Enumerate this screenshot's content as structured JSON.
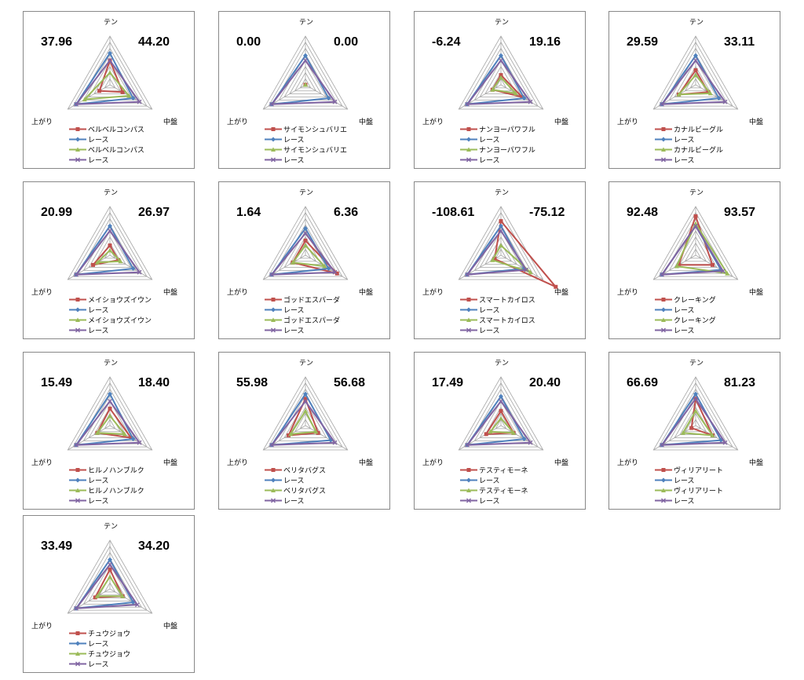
{
  "axes": [
    "テン",
    "中盤",
    "上がり"
  ],
  "series_style": [
    {
      "color": "#c0504d",
      "marker": "square"
    },
    {
      "color": "#4f81bd",
      "marker": "diamond"
    },
    {
      "color": "#9bbb59",
      "marker": "triangle"
    },
    {
      "color": "#8064a2",
      "marker": "x"
    }
  ],
  "chart_data": [
    {
      "type": "radar",
      "left_value": "37.96",
      "right_value": "44.20",
      "categories": [
        "テン",
        "中盤",
        "上がり"
      ],
      "series": [
        {
          "name": "ベルベルコンパス",
          "values": [
            0.5,
            0.3,
            0.25
          ]
        },
        {
          "name": "レース",
          "values": [
            0.65,
            0.55,
            0.8
          ]
        },
        {
          "name": "ベルベルコンパス",
          "values": [
            0.25,
            0.45,
            0.6
          ]
        },
        {
          "name": "レース",
          "values": [
            0.5,
            0.7,
            0.8
          ]
        }
      ]
    },
    {
      "type": "radar",
      "left_value": "0.00",
      "right_value": "0.00",
      "categories": [
        "テン",
        "中盤",
        "上がり"
      ],
      "series": [
        {
          "name": "サイモンシュバリエ",
          "values": [
            0,
            0,
            0
          ]
        },
        {
          "name": "レース",
          "values": [
            0.6,
            0.55,
            0.8
          ]
        },
        {
          "name": "サイモンシュバリエ",
          "values": [
            0,
            0,
            0
          ]
        },
        {
          "name": "レース",
          "values": [
            0.5,
            0.7,
            0.8
          ]
        }
      ]
    },
    {
      "type": "radar",
      "left_value": "-6.24",
      "right_value": "19.16",
      "categories": [
        "テン",
        "中盤",
        "上がり"
      ],
      "series": [
        {
          "name": "ナンヨーパワフル",
          "values": [
            0.2,
            0.5,
            0.2
          ]
        },
        {
          "name": "レース",
          "values": [
            0.6,
            0.55,
            0.8
          ]
        },
        {
          "name": "ナンヨーパワフル",
          "values": [
            0.15,
            0.35,
            0.2
          ]
        },
        {
          "name": "レース",
          "values": [
            0.5,
            0.7,
            0.8
          ]
        }
      ]
    },
    {
      "type": "radar",
      "left_value": "29.59",
      "right_value": "33.11",
      "categories": [
        "テン",
        "中盤",
        "上がり"
      ],
      "series": [
        {
          "name": "カナルビーグル",
          "values": [
            0.3,
            0.3,
            0.4
          ]
        },
        {
          "name": "レース",
          "values": [
            0.6,
            0.55,
            0.8
          ]
        },
        {
          "name": "カナルビーグル",
          "values": [
            0.2,
            0.35,
            0.4
          ]
        },
        {
          "name": "レース",
          "values": [
            0.5,
            0.7,
            0.8
          ]
        }
      ]
    },
    {
      "type": "radar",
      "left_value": "20.99",
      "right_value": "26.97",
      "categories": [
        "テン",
        "中盤",
        "上がり"
      ],
      "series": [
        {
          "name": "メイショウズイウン",
          "values": [
            0.2,
            0.2,
            0.4
          ]
        },
        {
          "name": "レース",
          "values": [
            0.6,
            0.55,
            0.8
          ]
        },
        {
          "name": "メイショウズイウン",
          "values": [
            0.1,
            0.25,
            0.3
          ]
        },
        {
          "name": "レース",
          "values": [
            0.5,
            0.7,
            0.8
          ]
        }
      ]
    },
    {
      "type": "radar",
      "left_value": "1.64",
      "right_value": "6.36",
      "categories": [
        "テン",
        "中盤",
        "上がり"
      ],
      "series": [
        {
          "name": "ゴッドエスパーダ",
          "values": [
            0.3,
            0.75,
            0.3
          ]
        },
        {
          "name": "レース",
          "values": [
            0.55,
            0.55,
            0.8
          ]
        },
        {
          "name": "ゴッドエスパーダ",
          "values": [
            0.2,
            0.45,
            0.3
          ]
        },
        {
          "name": "レース",
          "values": [
            0.45,
            0.7,
            0.8
          ]
        }
      ]
    },
    {
      "type": "radar",
      "left_value": "-108.61",
      "right_value": "-75.12",
      "categories": [
        "テン",
        "中盤",
        "上がり"
      ],
      "series": [
        {
          "name": "スマートカイロス",
          "values": [
            0.7,
            1.3,
            0.15
          ]
        },
        {
          "name": "レース",
          "values": [
            0.6,
            0.55,
            0.8
          ]
        },
        {
          "name": "スマートカイロス",
          "values": [
            0.2,
            0.7,
            0.2
          ]
        },
        {
          "name": "レース",
          "values": [
            0.5,
            0.6,
            0.8
          ]
        }
      ]
    },
    {
      "type": "radar",
      "left_value": "92.48",
      "right_value": "93.57",
      "categories": [
        "テン",
        "中盤",
        "上がり"
      ],
      "series": [
        {
          "name": "クレーキング",
          "values": [
            0.8,
            0.4,
            0.4
          ]
        },
        {
          "name": "レース",
          "values": [
            0.6,
            0.6,
            0.8
          ]
        },
        {
          "name": "クレーキング",
          "values": [
            0.65,
            0.75,
            0.45
          ]
        },
        {
          "name": "レース",
          "values": [
            0.6,
            0.65,
            0.8
          ]
        }
      ]
    },
    {
      "type": "radar",
      "left_value": "15.49",
      "right_value": "18.40",
      "categories": [
        "テン",
        "中盤",
        "上がり"
      ],
      "series": [
        {
          "name": "ヒルノハンブルク",
          "values": [
            0.35,
            0.5,
            0.3
          ]
        },
        {
          "name": "レース",
          "values": [
            0.65,
            0.55,
            0.8
          ]
        },
        {
          "name": "ヒルノハンブルク",
          "values": [
            0.2,
            0.35,
            0.3
          ]
        },
        {
          "name": "レース",
          "values": [
            0.5,
            0.7,
            0.8
          ]
        }
      ]
    },
    {
      "type": "radar",
      "left_value": "55.98",
      "right_value": "56.68",
      "categories": [
        "テン",
        "中盤",
        "上がり"
      ],
      "series": [
        {
          "name": "ベリタバグス",
          "values": [
            0.55,
            0.3,
            0.4
          ]
        },
        {
          "name": "レース",
          "values": [
            0.65,
            0.6,
            0.8
          ]
        },
        {
          "name": "ベリタバグス",
          "values": [
            0.3,
            0.25,
            0.35
          ]
        },
        {
          "name": "レース",
          "values": [
            0.5,
            0.7,
            0.8
          ]
        }
      ]
    },
    {
      "type": "radar",
      "left_value": "17.49",
      "right_value": "20.40",
      "categories": [
        "テン",
        "中盤",
        "上がり"
      ],
      "series": [
        {
          "name": "テスティモーネ",
          "values": [
            0.3,
            0.3,
            0.35
          ]
        },
        {
          "name": "レース",
          "values": [
            0.6,
            0.55,
            0.8
          ]
        },
        {
          "name": "テスティモーネ",
          "values": [
            0.15,
            0.3,
            0.25
          ]
        },
        {
          "name": "レース",
          "values": [
            0.5,
            0.7,
            0.8
          ]
        }
      ]
    },
    {
      "type": "radar",
      "left_value": "66.69",
      "right_value": "81.23",
      "categories": [
        "テン",
        "中盤",
        "上がり"
      ],
      "series": [
        {
          "name": "ヴィリアリート",
          "values": [
            0.55,
            0.4,
            0.1
          ]
        },
        {
          "name": "レース",
          "values": [
            0.65,
            0.6,
            0.8
          ]
        },
        {
          "name": "ヴィリアリート",
          "values": [
            0.3,
            0.4,
            0.3
          ]
        },
        {
          "name": "レース",
          "values": [
            0.55,
            0.7,
            0.8
          ]
        }
      ]
    },
    {
      "type": "radar",
      "left_value": "33.49",
      "right_value": "34.20",
      "categories": [
        "テン",
        "中盤",
        "上がり"
      ],
      "series": [
        {
          "name": "チュウジョウ",
          "values": [
            0.4,
            0.3,
            0.35
          ]
        },
        {
          "name": "レース",
          "values": [
            0.6,
            0.55,
            0.8
          ]
        },
        {
          "name": "チュウジョウ",
          "values": [
            0.25,
            0.3,
            0.3
          ]
        },
        {
          "name": "レース",
          "values": [
            0.5,
            0.65,
            0.8
          ]
        }
      ]
    }
  ]
}
